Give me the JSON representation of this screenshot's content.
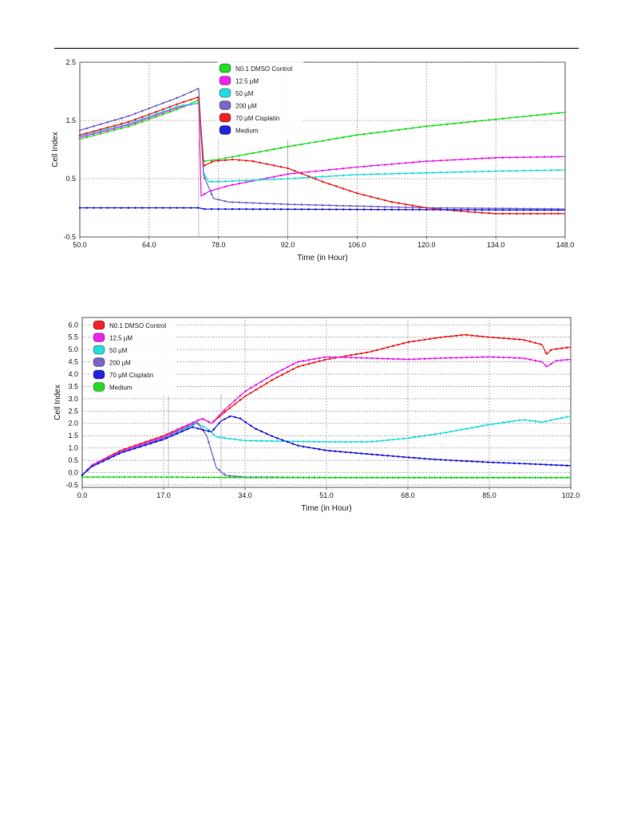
{
  "chart_data": [
    {
      "type": "line",
      "xlabel": "Time (in Hour)",
      "ylabel": "Cell Index",
      "xlim": [
        50,
        148
      ],
      "ylim": [
        -0.5,
        2.5
      ],
      "xticks": [
        "50.0",
        "64.0",
        "78.0",
        "92.0",
        "106.0",
        "120.0",
        "134.0",
        "148.0"
      ],
      "yticks": [
        "-0.5",
        "0.5",
        "1.5",
        "2.5"
      ],
      "xtick_values": [
        50,
        64,
        78,
        92,
        106,
        120,
        134,
        148
      ],
      "ytick_values": [
        -0.5,
        0.5,
        1.5,
        2.5
      ],
      "vmarkers": [
        74,
        92
      ],
      "grid": true,
      "legend_position": "top-center",
      "series": [
        {
          "name": "N0.1 DMSO Control",
          "color": "#22dd22",
          "points": [
            [
              50,
              1.18
            ],
            [
              60,
              1.4
            ],
            [
              70,
              1.7
            ],
            [
              74,
              1.85
            ],
            [
              75,
              0.8
            ],
            [
              78,
              0.83
            ],
            [
              92,
              1.05
            ],
            [
              106,
              1.25
            ],
            [
              120,
              1.4
            ],
            [
              134,
              1.52
            ],
            [
              148,
              1.64
            ]
          ]
        },
        {
          "name": "12.5 µM",
          "color": "#ee22ee",
          "points": [
            [
              50,
              1.21
            ],
            [
              60,
              1.43
            ],
            [
              70,
              1.73
            ],
            [
              74,
              1.8
            ],
            [
              74.5,
              0.2
            ],
            [
              76,
              0.28
            ],
            [
              80,
              0.38
            ],
            [
              92,
              0.58
            ],
            [
              106,
              0.7
            ],
            [
              120,
              0.8
            ],
            [
              134,
              0.86
            ],
            [
              148,
              0.88
            ]
          ]
        },
        {
          "name": "50 µM",
          "color": "#22dddd",
          "points": [
            [
              50,
              1.23
            ],
            [
              60,
              1.45
            ],
            [
              70,
              1.75
            ],
            [
              74,
              1.8
            ],
            [
              75,
              0.6
            ],
            [
              76,
              0.45
            ],
            [
              78,
              0.45
            ],
            [
              92,
              0.5
            ],
            [
              106,
              0.57
            ],
            [
              120,
              0.6
            ],
            [
              134,
              0.63
            ],
            [
              148,
              0.65
            ]
          ]
        },
        {
          "name": "200 µM",
          "color": "#7766cc",
          "points": [
            [
              50,
              1.33
            ],
            [
              60,
              1.58
            ],
            [
              70,
              1.9
            ],
            [
              74,
              2.05
            ],
            [
              75,
              0.55
            ],
            [
              77,
              0.16
            ],
            [
              80,
              0.1
            ],
            [
              92,
              0.06
            ],
            [
              106,
              0.03
            ],
            [
              120,
              0.0
            ],
            [
              134,
              -0.01
            ],
            [
              148,
              -0.02
            ]
          ]
        },
        {
          "name": "70 µM Cisplatin",
          "color": "#ee2222",
          "points": [
            [
              50,
              1.25
            ],
            [
              60,
              1.48
            ],
            [
              70,
              1.79
            ],
            [
              74,
              1.9
            ],
            [
              75,
              0.72
            ],
            [
              77,
              0.8
            ],
            [
              81,
              0.83
            ],
            [
              85,
              0.8
            ],
            [
              92,
              0.68
            ],
            [
              99,
              0.45
            ],
            [
              106,
              0.25
            ],
            [
              113,
              0.1
            ],
            [
              120,
              0.0
            ],
            [
              127,
              -0.06
            ],
            [
              134,
              -0.1
            ],
            [
              141,
              -0.1
            ],
            [
              148,
              -0.1
            ]
          ]
        },
        {
          "name": "Medium",
          "color": "#2222dd",
          "points": [
            [
              50,
              0.0
            ],
            [
              74,
              0.0
            ],
            [
              75,
              -0.02
            ],
            [
              148,
              -0.04
            ]
          ]
        }
      ]
    },
    {
      "type": "line",
      "xlabel": "Time (in Hour)",
      "ylabel": "Cell Index",
      "xlim": [
        0,
        102
      ],
      "ylim": [
        -0.6,
        6.3
      ],
      "xticks": [
        "0.0",
        "17.0",
        "34.0",
        "51.0",
        "68.0",
        "85.0",
        "102.0"
      ],
      "yticks": [
        "-0.5",
        "0.0",
        "0.5",
        "1.0",
        "1.5",
        "2.0",
        "2.5",
        "3.0",
        "3.5",
        "4.0",
        "4.5",
        "5.0",
        "5.5",
        "6.0"
      ],
      "xtick_values": [
        0,
        17,
        34,
        51,
        68,
        85,
        102
      ],
      "ytick_values": [
        -0.5,
        0.0,
        0.5,
        1.0,
        1.5,
        2.0,
        2.5,
        3.0,
        3.5,
        4.0,
        4.5,
        5.0,
        5.5,
        6.0
      ],
      "vmarkers": [
        18,
        29
      ],
      "grid": true,
      "legend_position": "top-left",
      "series": [
        {
          "name": "N0.1 DMSO Control",
          "color": "#ee2222",
          "points": [
            [
              0,
              -0.1
            ],
            [
              2,
              0.3
            ],
            [
              8,
              0.9
            ],
            [
              17,
              1.5
            ],
            [
              25,
              2.2
            ],
            [
              27,
              2.0
            ],
            [
              30,
              2.5
            ],
            [
              34,
              3.1
            ],
            [
              40,
              3.8
            ],
            [
              45,
              4.3
            ],
            [
              51,
              4.6
            ],
            [
              60,
              4.9
            ],
            [
              68,
              5.3
            ],
            [
              75,
              5.5
            ],
            [
              80,
              5.6
            ],
            [
              85,
              5.5
            ],
            [
              92,
              5.4
            ],
            [
              96,
              5.2
            ],
            [
              97,
              4.8
            ],
            [
              98,
              5.0
            ],
            [
              102,
              5.1
            ]
          ]
        },
        {
          "name": "12.5 µM",
          "color": "#ee22ee",
          "points": [
            [
              0,
              -0.1
            ],
            [
              2,
              0.3
            ],
            [
              8,
              0.85
            ],
            [
              17,
              1.45
            ],
            [
              25,
              2.2
            ],
            [
              27,
              2.0
            ],
            [
              30,
              2.6
            ],
            [
              34,
              3.3
            ],
            [
              40,
              4.0
            ],
            [
              45,
              4.5
            ],
            [
              51,
              4.7
            ],
            [
              60,
              4.65
            ],
            [
              68,
              4.6
            ],
            [
              75,
              4.65
            ],
            [
              85,
              4.7
            ],
            [
              92,
              4.65
            ],
            [
              96,
              4.5
            ],
            [
              97,
              4.3
            ],
            [
              99,
              4.55
            ],
            [
              102,
              4.6
            ]
          ]
        },
        {
          "name": "50 µM",
          "color": "#22dddd",
          "points": [
            [
              0,
              -0.1
            ],
            [
              2,
              0.25
            ],
            [
              8,
              0.8
            ],
            [
              17,
              1.35
            ],
            [
              24,
              2.0
            ],
            [
              26,
              1.8
            ],
            [
              28,
              1.45
            ],
            [
              34,
              1.3
            ],
            [
              51,
              1.25
            ],
            [
              60,
              1.25
            ],
            [
              68,
              1.4
            ],
            [
              75,
              1.6
            ],
            [
              85,
              1.95
            ],
            [
              92,
              2.15
            ],
            [
              96,
              2.05
            ],
            [
              102,
              2.3
            ]
          ]
        },
        {
          "name": "200 µM",
          "color": "#7766cc",
          "points": [
            [
              0,
              -0.1
            ],
            [
              2,
              0.25
            ],
            [
              8,
              0.8
            ],
            [
              17,
              1.4
            ],
            [
              24,
              2.05
            ],
            [
              26,
              1.5
            ],
            [
              28,
              0.2
            ],
            [
              30,
              -0.12
            ],
            [
              34,
              -0.18
            ],
            [
              51,
              -0.2
            ],
            [
              68,
              -0.2
            ],
            [
              85,
              -0.2
            ],
            [
              102,
              -0.2
            ]
          ]
        },
        {
          "name": "70 µM Cisplatin",
          "color": "#2222dd",
          "points": [
            [
              0,
              -0.1
            ],
            [
              2,
              0.25
            ],
            [
              8,
              0.8
            ],
            [
              17,
              1.35
            ],
            [
              23,
              1.85
            ],
            [
              25,
              1.75
            ],
            [
              27,
              1.65
            ],
            [
              29,
              2.1
            ],
            [
              31,
              2.3
            ],
            [
              33,
              2.2
            ],
            [
              36,
              1.8
            ],
            [
              40,
              1.45
            ],
            [
              45,
              1.1
            ],
            [
              51,
              0.9
            ],
            [
              60,
              0.75
            ],
            [
              68,
              0.62
            ],
            [
              75,
              0.52
            ],
            [
              85,
              0.42
            ],
            [
              92,
              0.37
            ],
            [
              102,
              0.28
            ]
          ]
        },
        {
          "name": "Medium",
          "color": "#22dd22",
          "points": [
            [
              0,
              -0.18
            ],
            [
              17,
              -0.18
            ],
            [
              34,
              -0.2
            ],
            [
              51,
              -0.2
            ],
            [
              68,
              -0.2
            ],
            [
              85,
              -0.2
            ],
            [
              102,
              -0.2
            ]
          ]
        }
      ]
    }
  ]
}
